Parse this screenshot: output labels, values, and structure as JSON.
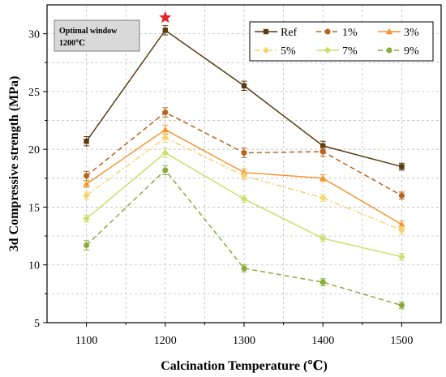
{
  "chart_data": {
    "type": "line",
    "title": "",
    "xlabel": "Calcination Temperature (℃)",
    "ylabel": "3d  Compressive strength (MPa)",
    "x": [
      1100,
      1200,
      1300,
      1400,
      1500
    ],
    "xlim": [
      1050,
      1550
    ],
    "ylim": [
      5,
      32.5
    ],
    "xticks": [
      1100,
      1200,
      1300,
      1400,
      1500
    ],
    "yticks": [
      5,
      10,
      15,
      20,
      25,
      30
    ],
    "grid": true,
    "legend_position": "top-right",
    "series": [
      {
        "name": "Ref",
        "color": "#5a3a13",
        "dash": "solid",
        "marker": "square",
        "values": [
          20.7,
          30.3,
          25.5,
          20.3,
          18.5
        ],
        "errors": [
          0.4,
          0.4,
          0.4,
          0.4,
          0.3
        ]
      },
      {
        "name": "1%",
        "color": "#b8621a",
        "dash": "dashed",
        "marker": "circle",
        "values": [
          17.7,
          23.2,
          19.7,
          19.8,
          16.0
        ],
        "errors": [
          0.4,
          0.4,
          0.4,
          0.4,
          0.3
        ]
      },
      {
        "name": "3%",
        "color": "#f4952f",
        "dash": "solid",
        "marker": "triangle",
        "values": [
          17.0,
          21.7,
          18.0,
          17.5,
          13.5
        ],
        "errors": [
          0.3,
          0.4,
          0.3,
          0.3,
          0.3
        ]
      },
      {
        "name": "5%",
        "color": "#f5d36f",
        "dash": "dashdot",
        "marker": "diamond",
        "values": [
          16.0,
          21.0,
          17.7,
          15.8,
          13.0
        ],
        "errors": [
          0.3,
          0.4,
          0.3,
          0.3,
          0.3
        ]
      },
      {
        "name": "7%",
        "color": "#c8e06e",
        "dash": "solid",
        "marker": "diamond",
        "values": [
          14.0,
          19.7,
          15.7,
          12.3,
          10.7
        ],
        "errors": [
          0.3,
          0.4,
          0.3,
          0.3,
          0.3
        ]
      },
      {
        "name": "9%",
        "color": "#8aab3c",
        "dash": "dashed",
        "marker": "circle",
        "values": [
          11.7,
          18.2,
          9.7,
          8.5,
          6.5
        ],
        "errors": [
          0.4,
          0.4,
          0.3,
          0.3,
          0.3
        ]
      }
    ],
    "annotations": {
      "box_line1": "Optimal window",
      "box_line2": "1200℃",
      "star_x": 1200,
      "star_y": 31.4,
      "star_color": "#e8212a"
    }
  }
}
